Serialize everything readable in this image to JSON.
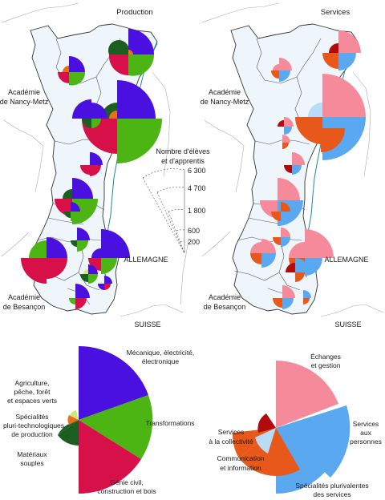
{
  "maps": {
    "production": {
      "title": "Production"
    },
    "services": {
      "title": "Services"
    },
    "labels": {
      "academie_nancy": [
        "Académie",
        "de Nancy-Metz"
      ],
      "academie_besancon": [
        "Académie",
        "de Besançon"
      ],
      "allemagne": "ALLEMAGNE",
      "suisse": "SUISSE"
    }
  },
  "scale_legend": {
    "title": [
      "Nombre d'élèves",
      "et d'apprentis"
    ],
    "values": [
      "6 300",
      "4 700",
      "1 800",
      "600",
      "200"
    ]
  },
  "legend_production": {
    "categories": [
      {
        "label": [
          "Mécanique, électricité,",
          "électronique"
        ],
        "color": "#4a10e0"
      },
      {
        "label": [
          "Transformations"
        ],
        "color": "#4cb514"
      },
      {
        "label": [
          "Génie civil,",
          "construction et bois"
        ],
        "color": "#d8104a"
      },
      {
        "label": [
          "Matériaux",
          "souples"
        ],
        "color": "#1b5e20"
      },
      {
        "label": [
          "Spécialités",
          "pluri-technologiques",
          "de production"
        ],
        "color": "#e8701a"
      },
      {
        "label": [
          "Agriculture,",
          "pêche, forêt",
          "et espaces verts"
        ],
        "color": "#cfe87a"
      }
    ]
  },
  "legend_services": {
    "categories": [
      {
        "label": [
          "Échanges",
          "et gestion"
        ],
        "color": "#f48a9a"
      },
      {
        "label": [
          "Services",
          "aux",
          "personnes"
        ],
        "color": "#5aa9f0"
      },
      {
        "label": [
          "Spécialités plurivalentes",
          "des services"
        ],
        "color": "#e8581a"
      },
      {
        "label": [
          "Communication",
          "et information"
        ],
        "color": "#b8dcf5"
      },
      {
        "label": [
          "Services",
          "à la collectivité"
        ],
        "color": "#b00a0a"
      }
    ]
  }
}
